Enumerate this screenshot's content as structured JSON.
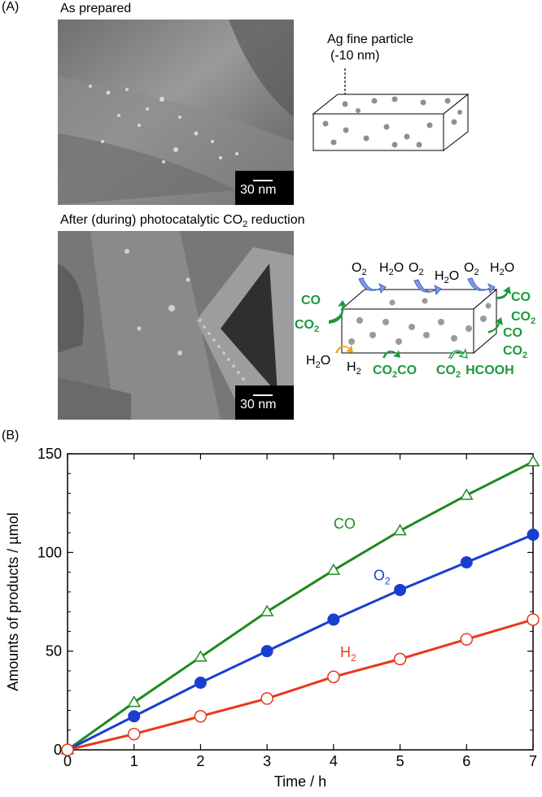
{
  "panel_a": {
    "label": "(A)",
    "top": {
      "caption": "As prepared",
      "scale_bar": "30 nm",
      "schematic_label_line1": "Ag fine particle",
      "schematic_label_line2": "(-10 nm)"
    },
    "bottom": {
      "caption_prefix": "After (during) photocatalytic CO",
      "caption_sub": "2",
      "caption_suffix": " reduction",
      "scale_bar": "30 nm",
      "schematic": {
        "o2": "O",
        "h2o": "H",
        "co": "CO",
        "co2": "CO",
        "h2": "H",
        "hcooh": "HCOOH",
        "sub2": "2",
        "h2o_rest": "O",
        "colors": {
          "green": "#1a9a3a",
          "blue": "#5b7fd6",
          "orange": "#f0a21e"
        }
      }
    }
  },
  "panel_b": {
    "label": "(B)"
  },
  "chart_data": {
    "type": "line",
    "xlabel": "Time / h",
    "ylabel": "Amounts of products / µmol",
    "xlim": [
      0,
      7
    ],
    "ylim": [
      0,
      150
    ],
    "xticks": [
      "0",
      "1",
      "2",
      "3",
      "4",
      "5",
      "6",
      "7"
    ],
    "yticks": [
      "0",
      "50",
      "100",
      "150"
    ],
    "x": [
      0,
      1,
      2,
      3,
      4,
      5,
      6,
      7
    ],
    "series": [
      {
        "name": "CO",
        "label_main": "CO",
        "label_sub": "",
        "color": "#1e8a1e",
        "marker": "open-triangle",
        "values": [
          0,
          24,
          47,
          70,
          91,
          111,
          129,
          146
        ]
      },
      {
        "name": "O2",
        "label_main": "O",
        "label_sub": "2",
        "color": "#1a3fd0",
        "marker": "filled-circle",
        "values": [
          0,
          17,
          34,
          50,
          66,
          81,
          95,
          109
        ]
      },
      {
        "name": "H2",
        "label_main": "H",
        "label_sub": "2",
        "color": "#e8381a",
        "marker": "open-circle",
        "values": [
          0,
          8,
          17,
          26,
          37,
          46,
          56,
          66
        ]
      }
    ],
    "grid": false,
    "legend": "inline labels"
  }
}
